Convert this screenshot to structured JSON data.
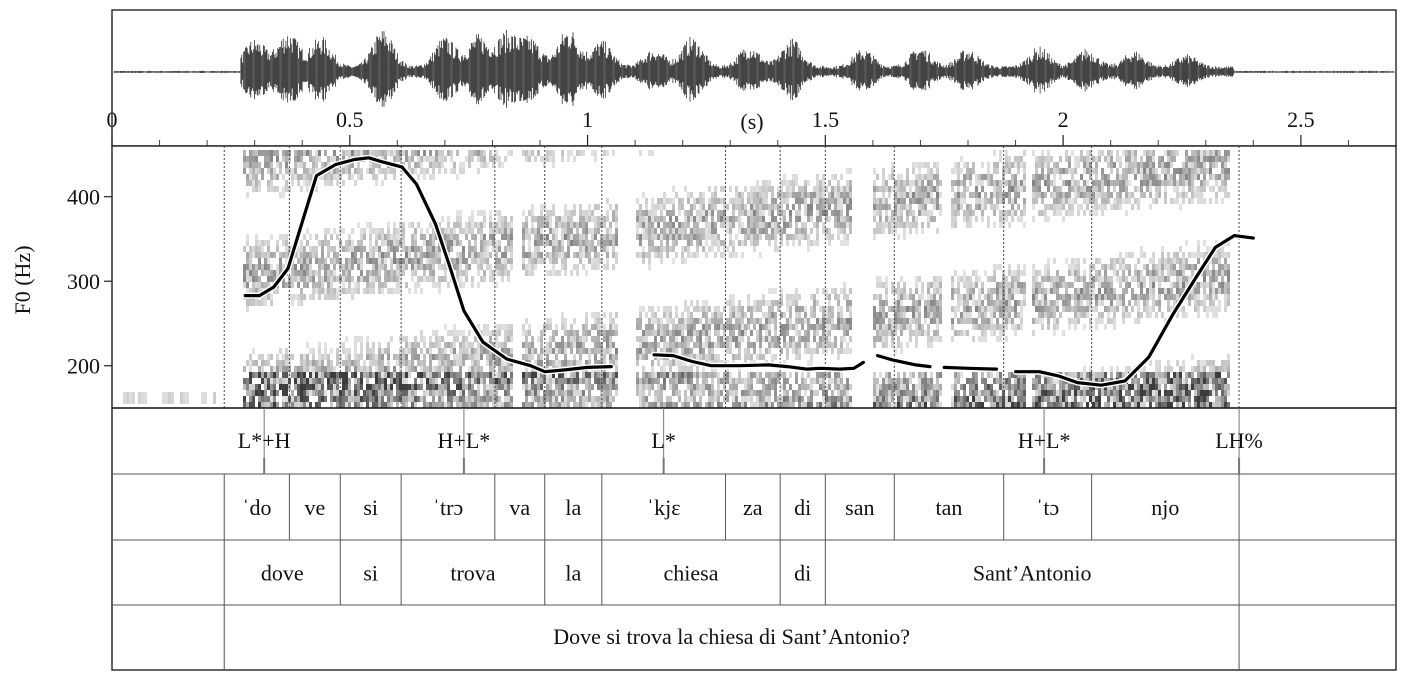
{
  "chart_data": {
    "type": "line",
    "title": "",
    "ylabel": "F0 (Hz)",
    "time_axis": {
      "unit_label": "(s)",
      "ticks": [
        {
          "value": 0,
          "label": "0"
        },
        {
          "value": 0.5,
          "label": "0.5"
        },
        {
          "value": 1,
          "label": "1"
        },
        {
          "value": 1.5,
          "label": "1.5"
        },
        {
          "value": 2,
          "label": "2"
        },
        {
          "value": 2.5,
          "label": "2.5"
        }
      ],
      "xlim": [
        0,
        2.7
      ]
    },
    "f0_axis": {
      "ylim": [
        150,
        460
      ],
      "ticks": [
        {
          "value": 200,
          "label": "200"
        },
        {
          "value": 300,
          "label": "300"
        },
        {
          "value": 400,
          "label": "400"
        }
      ]
    },
    "series": [
      {
        "segments": [
          [
            [
              0.28,
              283
            ],
            [
              0.31,
              283
            ],
            [
              0.34,
              293
            ],
            [
              0.37,
              315
            ],
            [
              0.4,
              370
            ],
            [
              0.43,
              425
            ],
            [
              0.47,
              438
            ],
            [
              0.51,
              444
            ],
            [
              0.54,
              446
            ],
            [
              0.57,
              441
            ],
            [
              0.61,
              435
            ],
            [
              0.64,
              415
            ],
            [
              0.68,
              368
            ],
            [
              0.71,
              318
            ],
            [
              0.74,
              265
            ],
            [
              0.78,
              228
            ],
            [
              0.83,
              208
            ],
            [
              0.88,
              200
            ],
            [
              0.91,
              193
            ],
            [
              0.95,
              195
            ],
            [
              1.0,
              198
            ],
            [
              1.05,
              199
            ]
          ],
          [
            [
              1.14,
              213
            ],
            [
              1.18,
              212
            ],
            [
              1.22,
              205
            ],
            [
              1.26,
              200
            ],
            [
              1.32,
              200
            ],
            [
              1.38,
              201
            ],
            [
              1.42,
              199
            ],
            [
              1.46,
              196
            ],
            [
              1.49,
              197
            ],
            [
              1.53,
              196
            ],
            [
              1.56,
              197
            ],
            [
              1.58,
              204
            ]
          ],
          [
            [
              1.61,
              212
            ],
            [
              1.64,
              207
            ],
            [
              1.69,
              201
            ],
            [
              1.72,
              199
            ]
          ],
          [
            [
              1.75,
              198
            ],
            [
              1.8,
              197
            ],
            [
              1.86,
              196
            ]
          ],
          [
            [
              1.9,
              193
            ],
            [
              1.95,
              193
            ],
            [
              1.99,
              188
            ],
            [
              2.03,
              180
            ],
            [
              2.08,
              177
            ],
            [
              2.13,
              182
            ],
            [
              2.18,
              210
            ],
            [
              2.23,
              260
            ],
            [
              2.28,
              305
            ],
            [
              2.32,
              340
            ],
            [
              2.36,
              354
            ],
            [
              2.4,
              351
            ]
          ]
        ]
      }
    ],
    "tiers": {
      "tones": [
        {
          "label": "L*+H",
          "t": 0.32
        },
        {
          "label": "H+L*",
          "t": 0.74
        },
        {
          "label": "L*",
          "t": 1.16
        },
        {
          "label": "H+L*",
          "t": 1.96
        },
        {
          "label": "LH%",
          "t": 2.37
        }
      ],
      "syllables": [
        "ˈdo",
        "ve",
        "si",
        "ˈtrɔ",
        "va",
        "la",
        "ˈkjɛ",
        "za",
        "di",
        "san",
        "tan",
        "ˈtɔ",
        "njo"
      ],
      "syllable_bounds": [
        0.236,
        0.373,
        0.48,
        0.608,
        0.805,
        0.91,
        1.03,
        1.29,
        1.405,
        1.5,
        1.645,
        1.875,
        2.06,
        2.37
      ],
      "words": [
        "dove",
        "si",
        "trova",
        "la",
        "chiesa",
        "di",
        "Sant’Antonio"
      ],
      "word_bounds": [
        0.236,
        0.48,
        0.608,
        0.91,
        1.03,
        1.405,
        1.5,
        2.37
      ],
      "sentence": "Dove si trova la chiesa di Sant’Antonio?",
      "sentence_bounds": [
        0.236,
        2.37
      ]
    }
  }
}
